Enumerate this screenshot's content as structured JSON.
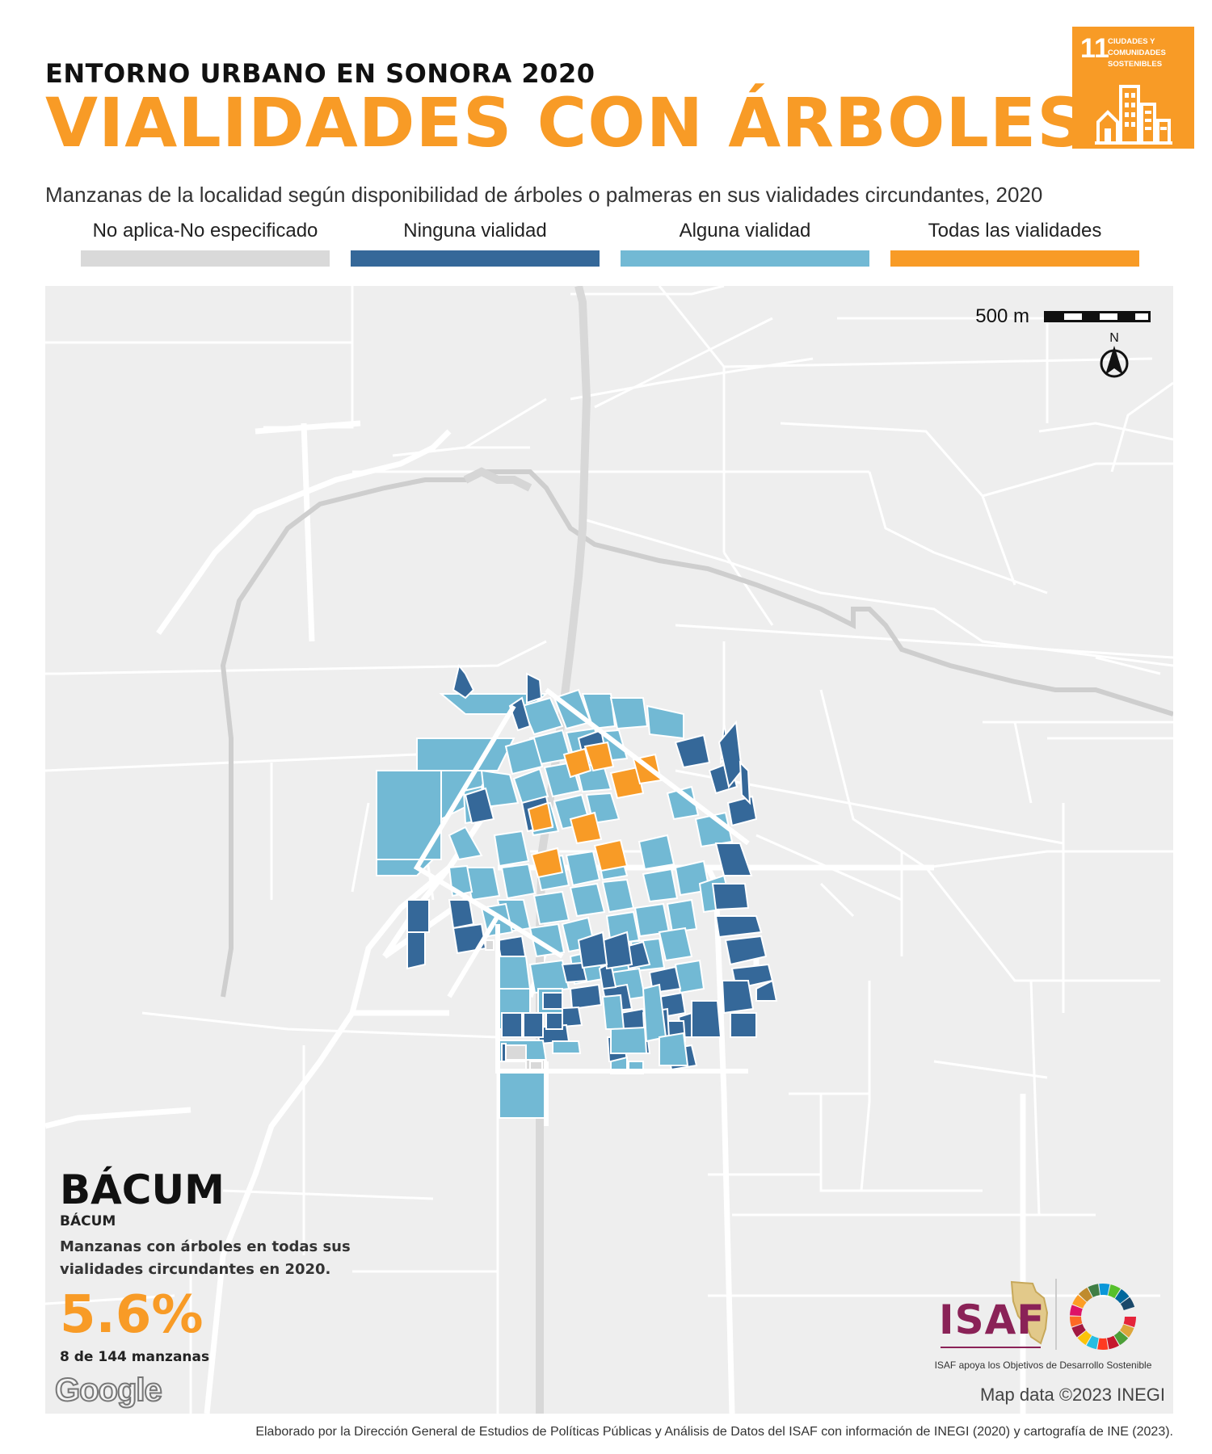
{
  "header": {
    "kicker": "ENTORNO URBANO EN SONORA 2020",
    "title": "VIALIDADES CON ÁRBOLES",
    "subtitle": "Manzanas de la localidad según disponibilidad de árboles o palmeras en sus vialidades circundantes, 2020"
  },
  "sdg_badge": {
    "number": "11",
    "text": "CIUDADES Y\nCOMUNIDADES\nSOSTENIBLES",
    "color": "#F89B26",
    "icon": "city-buildings-icon"
  },
  "legend": [
    {
      "label": "No aplica-No especificado",
      "color": "#D9D9D9"
    },
    {
      "label": "Ninguna vialidad",
      "color": "#356899"
    },
    {
      "label": "Alguna vialidad",
      "color": "#72B9D4"
    },
    {
      "label": "Todas las vialidades",
      "color": "#F89B26"
    }
  ],
  "map": {
    "scale_label": "500 m",
    "north_label": "N",
    "attribution": "Map data ©2023 INEGI",
    "provider": "Google"
  },
  "locality": {
    "name": "BÁCUM",
    "municipality": "BÁCUM",
    "description": "Manzanas con árboles en todas sus vialidades circundantes en 2020.",
    "percentage": "5.6%",
    "count_text": "8 de 144 manzanas"
  },
  "logo": {
    "name": "ISAF",
    "tagline": "ISAF apoya los Objetivos de Desarrollo Sostenible",
    "color": "#8A2257"
  },
  "footer": {
    "credit": "Elaborado por la Dirección General de Estudios de Políticas Públicas y Análisis de Datos del ISAF con información de INEGI (2020) y cartografía de INE (2023)."
  }
}
